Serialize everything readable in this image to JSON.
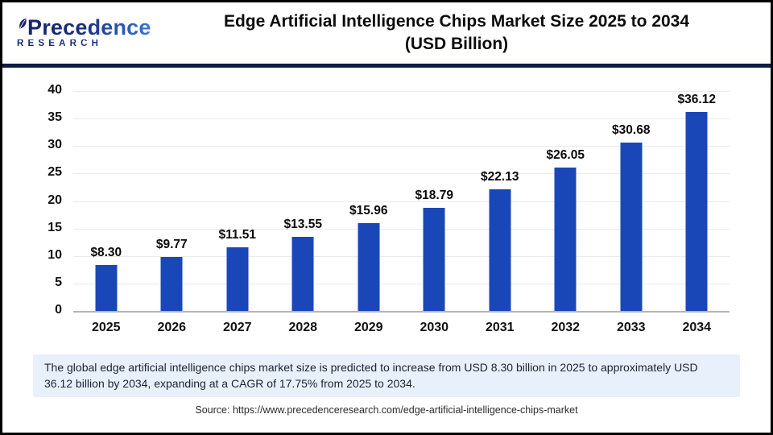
{
  "header": {
    "logo": {
      "name": "Precedence",
      "subname": "RESEARCH"
    },
    "title_line1": "Edge Artificial Intelligence Chips Market Size 2025 to 2034",
    "title_line2": "(USD Billion)"
  },
  "chart_data": {
    "type": "bar",
    "title": "Edge Artificial Intelligence Chips Market Size 2025 to 2034 (USD Billion)",
    "categories": [
      "2025",
      "2026",
      "2027",
      "2028",
      "2029",
      "2030",
      "2031",
      "2032",
      "2033",
      "2034"
    ],
    "values": [
      8.3,
      9.77,
      11.51,
      13.55,
      15.96,
      18.79,
      22.13,
      26.05,
      30.68,
      36.12
    ],
    "value_labels": [
      "$8.30",
      "$9.77",
      "$11.51",
      "$13.55",
      "$15.96",
      "$18.79",
      "$22.13",
      "$26.05",
      "$30.68",
      "$36.12"
    ],
    "unit": "USD Billion",
    "xlabel": "",
    "ylabel": "",
    "ylim": [
      0,
      40
    ],
    "yticks": [
      0,
      5,
      10,
      15,
      20,
      25,
      30,
      35,
      40
    ],
    "grid": true,
    "legend": false,
    "bar_color": "#1a47b8"
  },
  "summary": {
    "text": "The global edge artificial intelligence chips market size is predicted to increase from USD 8.30 billion in 2025 to approximately USD 36.12 billion by 2034, expanding at a CAGR of 17.75% from 2025 to 2034."
  },
  "source": {
    "text": "Source: https://www.precedenceresearch.com/edge-artificial-intelligence-chips-market"
  },
  "colors": {
    "bar": "#1a47b8",
    "header_rule_navy": "#0e1b45",
    "logo_navy": "#16246a",
    "logo_blue": "#3a76d8",
    "summary_background": "#e8f1fb"
  }
}
